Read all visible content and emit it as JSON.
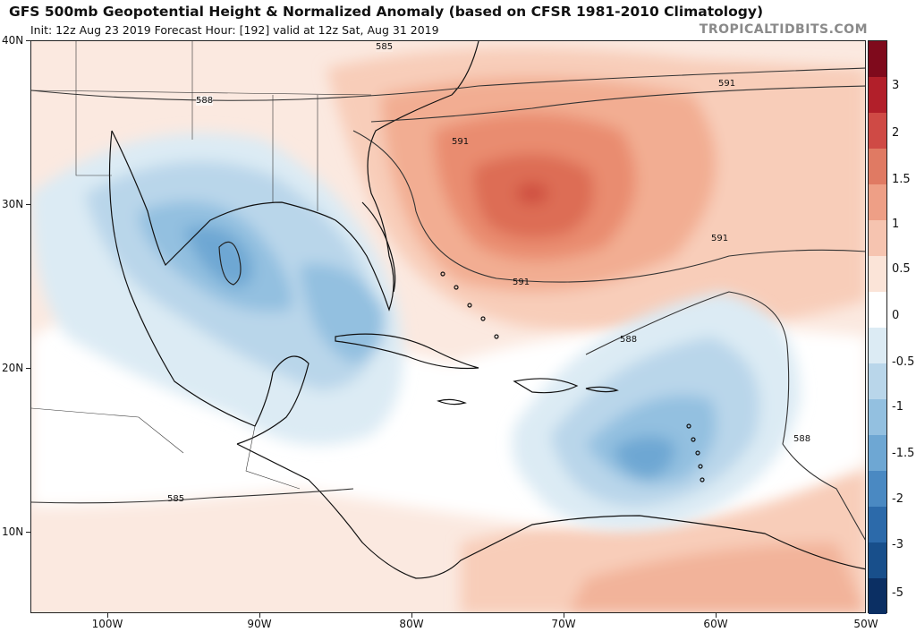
{
  "header": {
    "title": "GFS 500mb Geopotential Height & Normalized Anomaly (based on CFSR 1981-2010 Climatology)",
    "subtitle": "Init: 12z Aug 23 2019   Forecast Hour: [192]   valid at 12z Sat, Aug 31 2019",
    "site": "TROPICALTIDBITS.COM"
  },
  "axes": {
    "lat_labels": [
      "40N",
      "30N",
      "20N",
      "10N"
    ],
    "lon_labels": [
      "100W",
      "90W",
      "80W",
      "70W",
      "60W",
      "50W"
    ]
  },
  "contours": {
    "labels": [
      "585",
      "588",
      "591",
      "591",
      "591",
      "591",
      "588",
      "588",
      "585"
    ]
  },
  "colorbar": {
    "labels": [
      "3",
      "2",
      "1.5",
      "1",
      "0.5",
      "0",
      "-0.5",
      "-1",
      "-1.5",
      "-2",
      "-3",
      "-5"
    ],
    "colors": [
      "#7f0a1c",
      "#b21f2a",
      "#cf4a45",
      "#e07a63",
      "#ee9f86",
      "#f6c4b0",
      "#fbe4d8",
      "#ffffff",
      "#dcebf4",
      "#b9d6ea",
      "#93c0e0",
      "#6ea7d3",
      "#4a89c2",
      "#2c6aaa",
      "#184f8b",
      "#0b2f63"
    ]
  }
}
